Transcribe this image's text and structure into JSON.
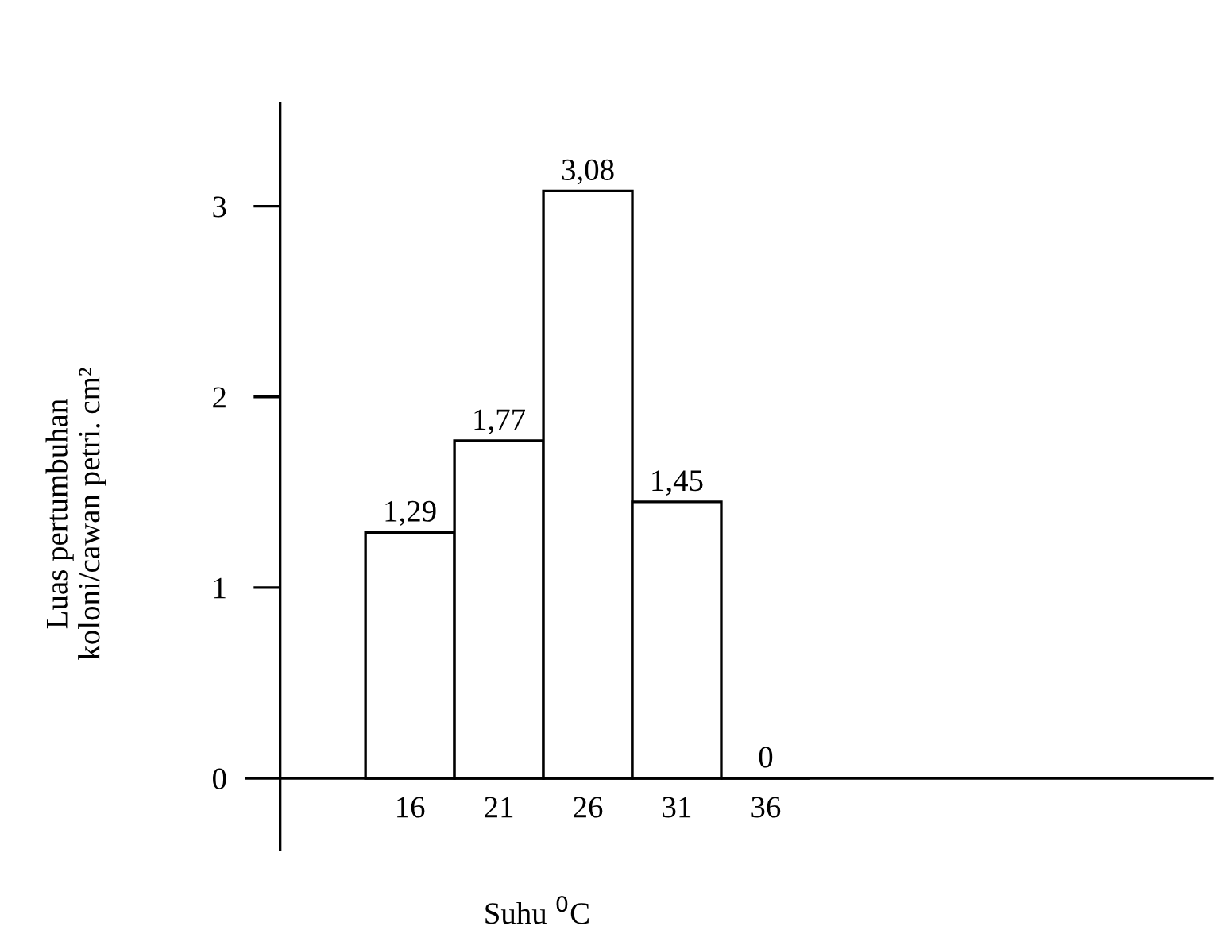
{
  "chart_data": {
    "type": "bar",
    "xlabel": "Suhu $^{0}$C",
    "ylabel": "Luas pertumbuhan\nkoloni/cawan petri. cm²",
    "categories": [
      "16",
      "21",
      "26",
      "31",
      "36"
    ],
    "values": [
      1.29,
      1.77,
      3.08,
      1.45,
      0
    ],
    "value_labels": [
      "1,29",
      "1,77",
      "3,08",
      "1,45",
      "0"
    ],
    "color": "#ffffff",
    "ylim": [
      -0.375,
      3.54
    ],
    "yticks": [
      0,
      1,
      2,
      3
    ],
    "grid": false,
    "legend": false
  }
}
